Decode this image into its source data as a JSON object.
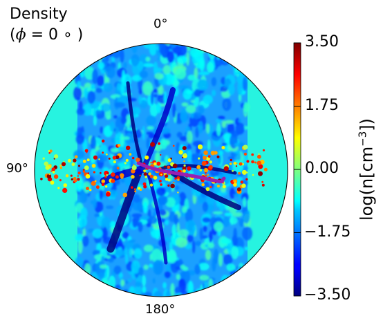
{
  "chart_data": {
    "type": "heatmap",
    "projection": "polar",
    "title": "Density",
    "subtitle_prefix": "(",
    "subtitle_symbol": "ϕ",
    "subtitle_rest": " = 0 ∘ )",
    "angle_labels": {
      "top": "0°",
      "left": "90°",
      "bottom": "180°"
    },
    "colorbar": {
      "label_main": "log(n[cm",
      "label_exp": "−3",
      "label_end": "])",
      "range": [
        -3.5,
        3.5
      ],
      "colormap": "jet",
      "ticks": [
        {
          "value": 3.5,
          "text": "3.50"
        },
        {
          "value": 1.75,
          "text": "1.75"
        },
        {
          "value": 0.0,
          "text": "0.00"
        },
        {
          "value": -1.75,
          "text": "−1.75"
        },
        {
          "value": -3.5,
          "text": "−3.50"
        }
      ]
    },
    "background_level": -0.9,
    "features": [
      {
        "name": "turbulent field",
        "description": "mostly blue to cyan, values roughly -2 to -0.5"
      },
      {
        "name": "equatorial dense band",
        "description": "red/yellow clumps along the horizontal midplane, values up to about 3.5"
      },
      {
        "name": "low-density outflow channels",
        "description": "dark blue streaks near center, values around -3.5"
      }
    ],
    "overlay_line": {
      "color": "#9b1fb0",
      "description": "magenta curve running right-downward from the center"
    }
  }
}
